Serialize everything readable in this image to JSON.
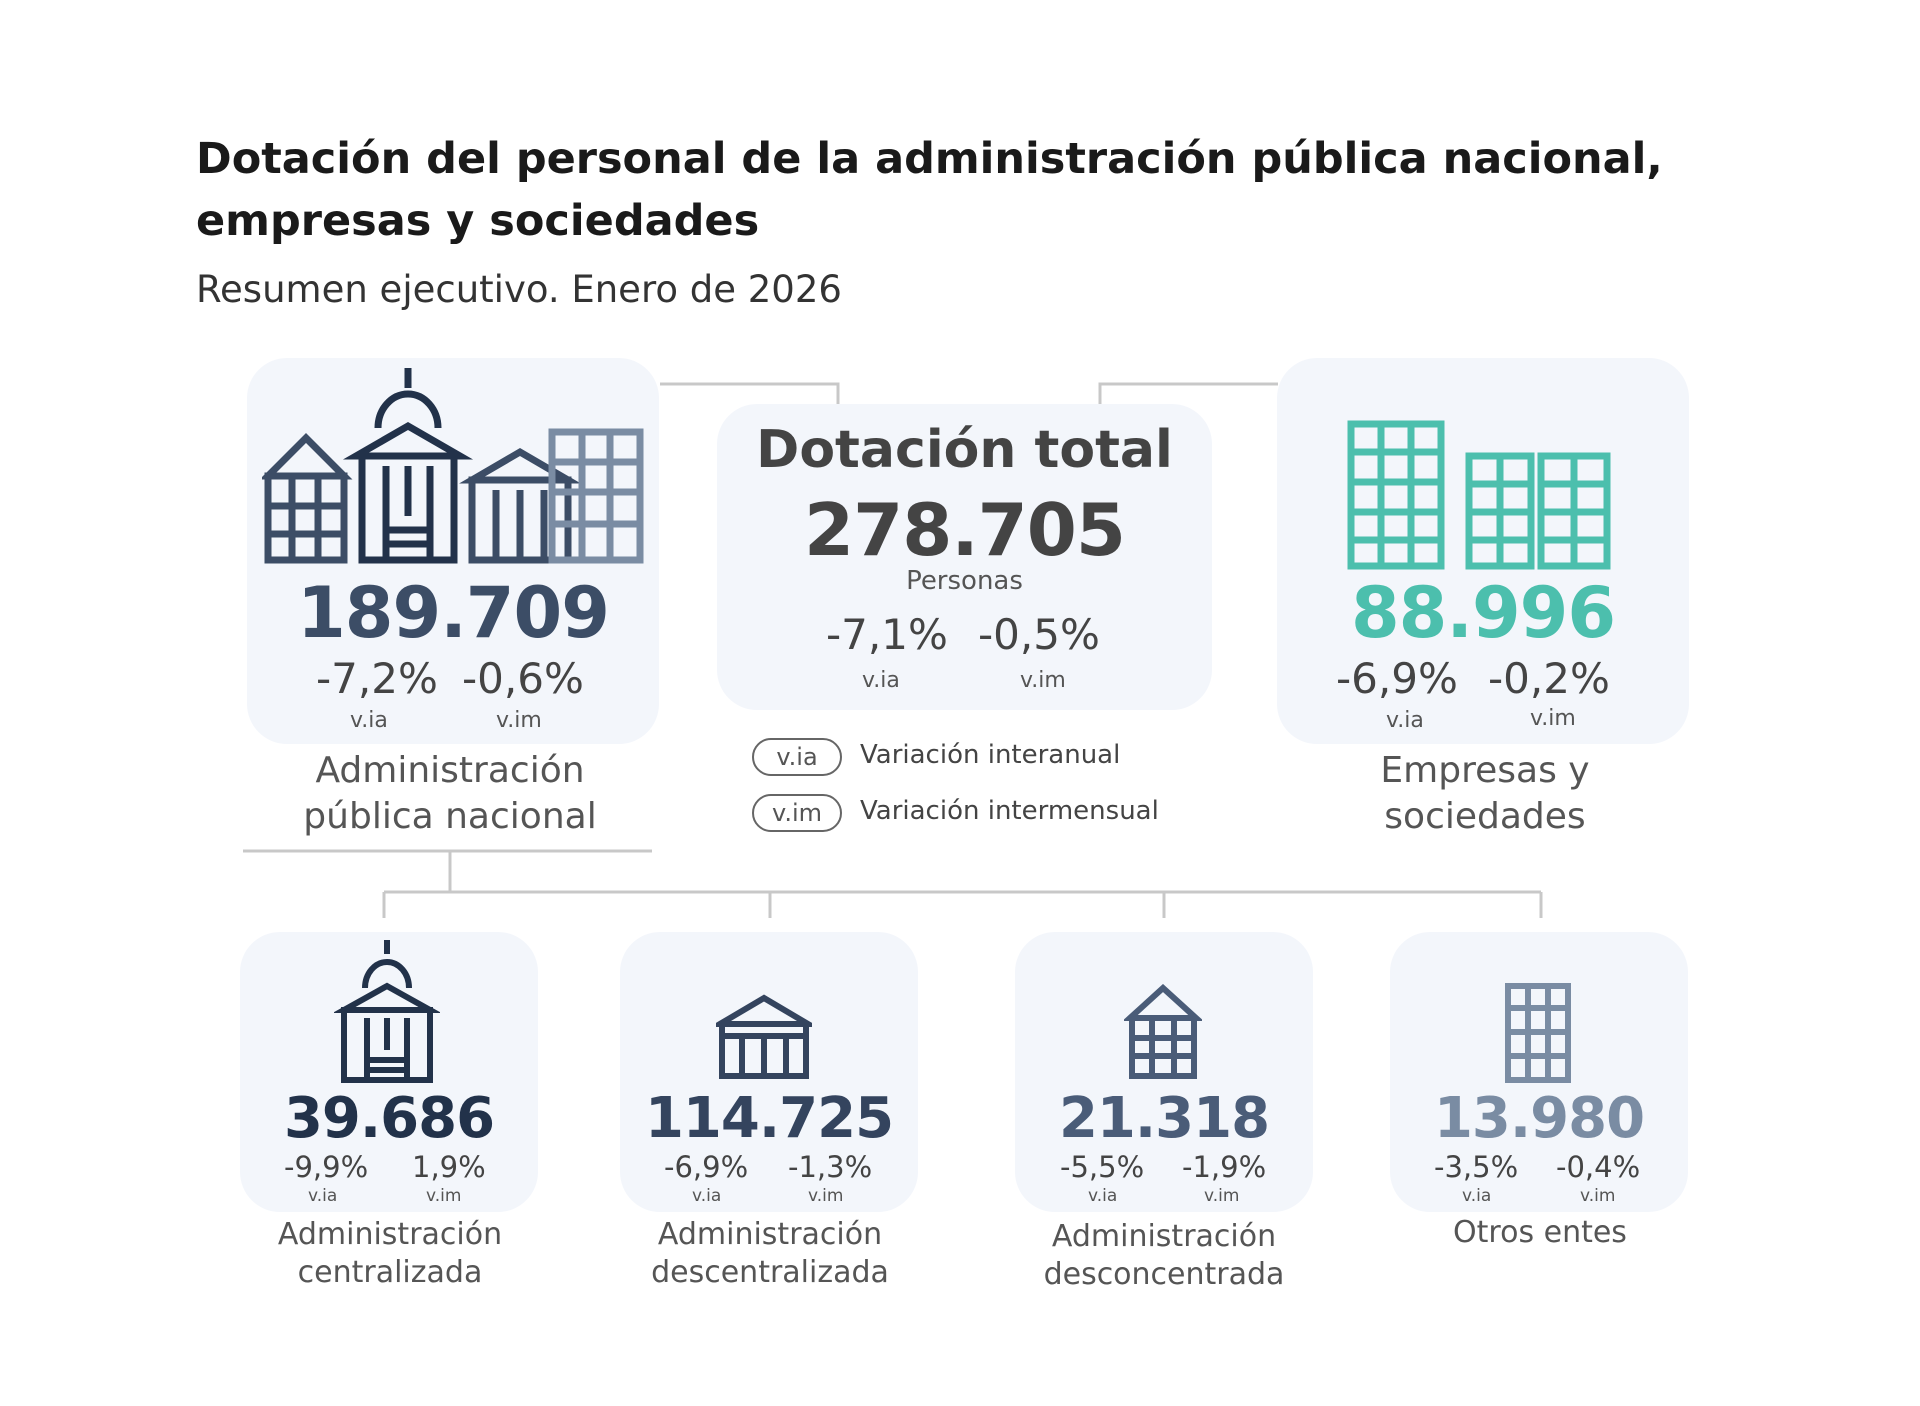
{
  "header": {
    "title_line1": "Dotación del personal de la administración pública nacional,",
    "title_line2": "empresas y sociedades",
    "subtitle": "Resumen ejecutivo. Enero de 2026"
  },
  "colors": {
    "apn": "#3c4d66",
    "empresas": "#4cbfad",
    "total": "#444444",
    "otros": "#7a8ca3",
    "connector": "#c8c8c8",
    "card_bg": "#f3f6fb"
  },
  "apn": {
    "icon": "government-buildings-icon",
    "value": "189.709",
    "via": "-7,2%",
    "vim": "-0,6%",
    "via_label": "v.ia",
    "vim_label": "v.im",
    "label_line1": "Administración",
    "label_line2": "pública nacional"
  },
  "total": {
    "title": "Dotación total",
    "value": "278.705",
    "unit": "Personas",
    "via": "-7,1%",
    "vim": "-0,5%",
    "via_label": "v.ia",
    "vim_label": "v.im"
  },
  "empresas": {
    "icon": "office-buildings-icon",
    "value": "88.996",
    "via": "-6,9%",
    "vim": "-0,2%",
    "via_label": "v.ia",
    "vim_label": "v.im",
    "label_line1": "Empresas y",
    "label_line2": "sociedades"
  },
  "legend": [
    {
      "abbr": "v.ia",
      "text": "Variación interanual"
    },
    {
      "abbr": "v.im",
      "text": "Variación intermensual"
    }
  ],
  "subunits": [
    {
      "icon": "domed-building-icon",
      "value": "39.686",
      "via": "-9,9%",
      "vim": "1,9%",
      "via_label": "v.ia",
      "vim_label": "v.im",
      "label_line1": "Administración",
      "label_line2": "centralizada",
      "color": "#22324a"
    },
    {
      "icon": "columned-building-icon",
      "value": "114.725",
      "via": "-6,9%",
      "vim": "-1,3%",
      "via_label": "v.ia",
      "vim_label": "v.im",
      "label_line1": "Administración",
      "label_line2": "descentralizada",
      "color": "#34445e"
    },
    {
      "icon": "house-building-icon",
      "value": "21.318",
      "via": "-5,5%",
      "vim": "-1,9%",
      "via_label": "v.ia",
      "vim_label": "v.im",
      "label_line1": "Administración",
      "label_line2": "desconcentrada",
      "color": "#4a5c78"
    },
    {
      "icon": "tower-building-icon",
      "value": "13.980",
      "via": "-3,5%",
      "vim": "-0,4%",
      "via_label": "v.ia",
      "vim_label": "v.im",
      "label_line1": "Otros entes",
      "label_line2": "",
      "color": "#7a8ca3"
    }
  ]
}
